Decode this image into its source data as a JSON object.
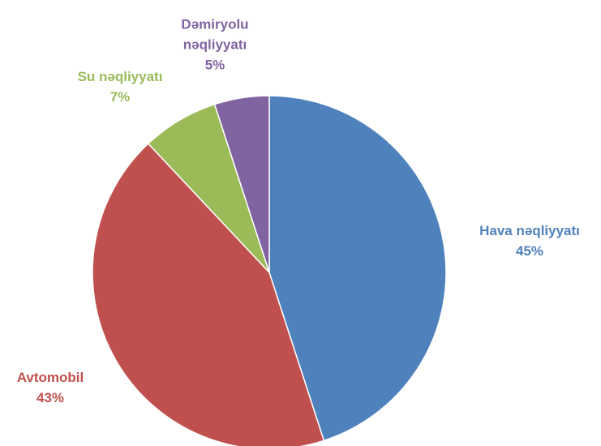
{
  "chart_data": {
    "type": "pie",
    "categories": [
      "Hava nəqliyyatı",
      "Avtomobil",
      "Su nəqliyyatı",
      "Dəmiryolu nəqliyyatı"
    ],
    "values": [
      45,
      43,
      7,
      5
    ],
    "value_labels": [
      "45%",
      "43%",
      "7%",
      "5%"
    ],
    "colors": [
      "#4f81bd",
      "#c0504d",
      "#9bbb59",
      "#8064a2"
    ]
  }
}
